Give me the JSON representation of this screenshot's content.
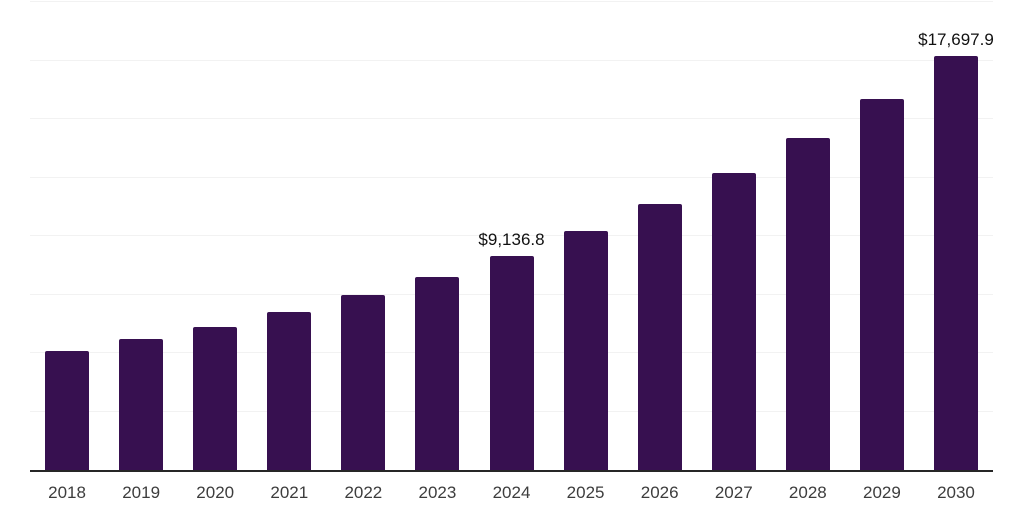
{
  "chart_data": {
    "type": "bar",
    "title": "",
    "xlabel": "",
    "ylabel": "",
    "categories": [
      "2018",
      "2019",
      "2020",
      "2021",
      "2022",
      "2023",
      "2024",
      "2025",
      "2026",
      "2027",
      "2028",
      "2029",
      "2030"
    ],
    "values": [
      5090,
      5590,
      6120,
      6740,
      7480,
      8250,
      9136.8,
      10210,
      11370,
      12690,
      14190,
      15860,
      17697.9
    ],
    "data_labels": [
      "",
      "",
      "",
      "",
      "",
      "",
      "$9,136.8",
      "",
      "",
      "",
      "",
      "",
      "$17,697.9"
    ],
    "ylim": [
      0,
      20000
    ],
    "gridline_step": 2500,
    "grid": "horizontal",
    "legend": "none",
    "y_axis_labels_visible": false,
    "colors": {
      "bar": "#371050",
      "gridline": "#f2f2f2",
      "axis_line": "#262626",
      "tick_label": "#3d3d3d",
      "data_label": "#111111",
      "background": "#ffffff"
    }
  }
}
